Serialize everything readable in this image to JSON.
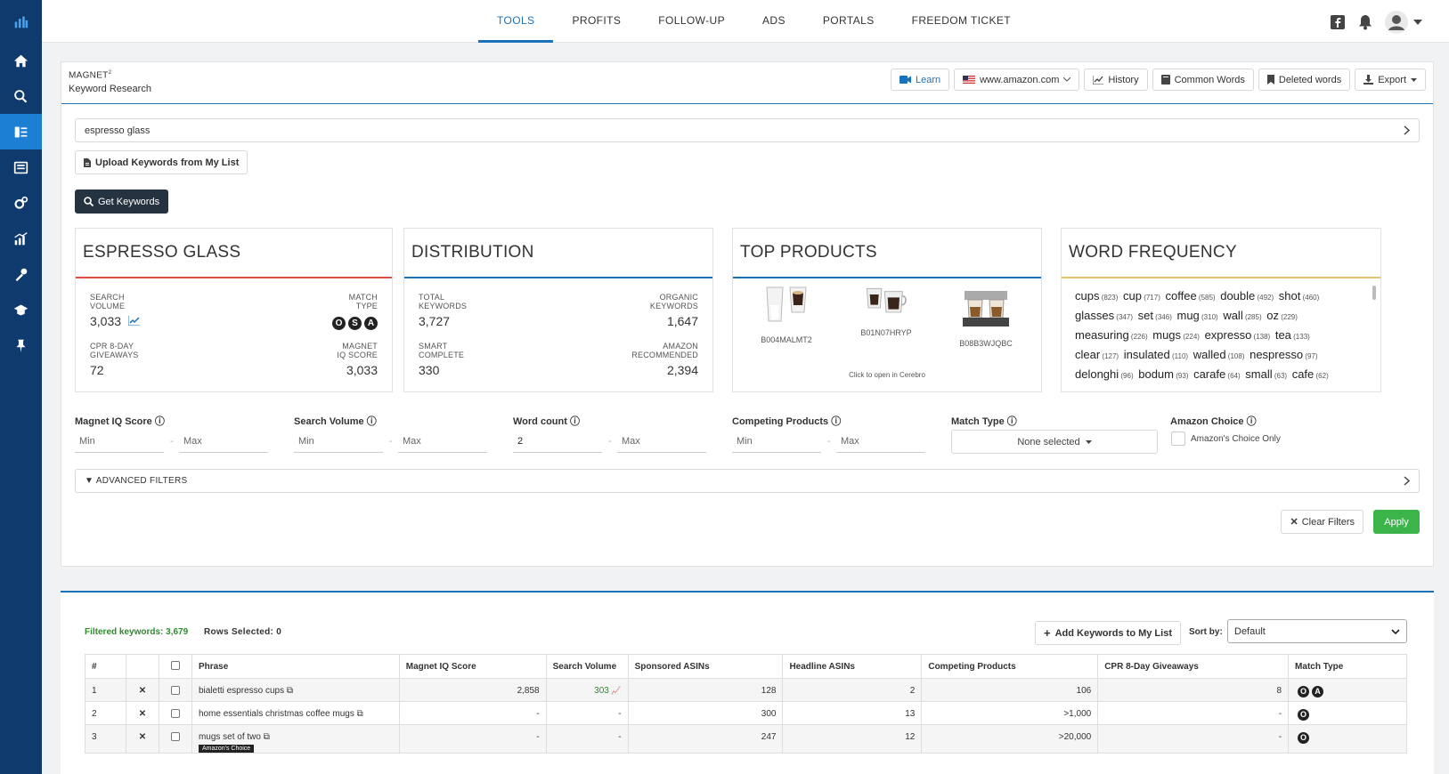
{
  "nav": {
    "tabs": [
      "TOOLS",
      "PROFITS",
      "FOLLOW-UP",
      "ADS",
      "PORTALS",
      "FREEDOM TICKET"
    ],
    "active_tab": "TOOLS"
  },
  "panel": {
    "title": "MAGNET",
    "title_sup": "2",
    "subtitle": "Keyword Research",
    "toolbar": {
      "learn": "Learn",
      "marketplace": "www.amazon.com",
      "history": "History",
      "common_words": "Common Words",
      "deleted_words": "Deleted words",
      "export": "Export"
    },
    "search_value": "espresso glass",
    "upload_label": "Upload Keywords from My List",
    "get_keywords_label": "Get Keywords"
  },
  "cards": {
    "keyword": {
      "title": "ESPRESSO GLASS",
      "search_volume_label": "SEARCH\nVOLUME",
      "search_volume": "3,033",
      "match_type_label": "MATCH\nTYPE",
      "match_badges": [
        "O",
        "S",
        "A"
      ],
      "cpr_label": "CPR 8-DAY\nGIVEAWAYS",
      "cpr": "72",
      "iq_label": "MAGNET\nIQ SCORE",
      "iq": "3,033"
    },
    "distribution": {
      "title": "DISTRIBUTION",
      "total_label": "TOTAL\nKEYWORDS",
      "total": "3,727",
      "organic_label": "ORGANIC\nKEYWORDS",
      "organic": "1,647",
      "smart_label": "SMART\nCOMPLETE",
      "smart": "330",
      "amazon_label": "AMAZON\nRECOMMENDED",
      "amazon": "2,394"
    },
    "top_products": {
      "title": "TOP PRODUCTS",
      "products": [
        "B004MALMT2",
        "B01N07HRYP",
        "B08B3WJQBC"
      ],
      "hint": "Click to open in Cerebro"
    },
    "word_frequency": {
      "title": "WORD FREQUENCY",
      "words": [
        {
          "word": "cups",
          "count": "(823)"
        },
        {
          "word": "cup",
          "count": "(717)"
        },
        {
          "word": "coffee",
          "count": "(585)"
        },
        {
          "word": "double",
          "count": "(492)"
        },
        {
          "word": "shot",
          "count": "(460)"
        },
        {
          "word": "glasses",
          "count": "(347)"
        },
        {
          "word": "set",
          "count": "(346)"
        },
        {
          "word": "mug",
          "count": "(310)"
        },
        {
          "word": "wall",
          "count": "(285)"
        },
        {
          "word": "oz",
          "count": "(229)"
        },
        {
          "word": "measuring",
          "count": "(226)"
        },
        {
          "word": "mugs",
          "count": "(224)"
        },
        {
          "word": "expresso",
          "count": "(138)"
        },
        {
          "word": "tea",
          "count": "(133)"
        },
        {
          "word": "clear",
          "count": "(127)"
        },
        {
          "word": "insulated",
          "count": "(110)"
        },
        {
          "word": "walled",
          "count": "(108)"
        },
        {
          "word": "nespresso",
          "count": "(97)"
        },
        {
          "word": "delonghi",
          "count": "(96)"
        },
        {
          "word": "bodum",
          "count": "(93)"
        },
        {
          "word": "carafe",
          "count": "(64)"
        },
        {
          "word": "small",
          "count": "(63)"
        },
        {
          "word": "cafe",
          "count": "(62)"
        }
      ]
    }
  },
  "filters": {
    "iq_label": "Magnet IQ Score",
    "sv_label": "Search Volume",
    "wc_label": "Word count",
    "cp_label": "Competing Products",
    "mt_label": "Match Type",
    "ac_label": "Amazon Choice",
    "min": "Min",
    "max": "Max",
    "word_count_min": "2",
    "match_type_value": "None selected",
    "ac_only": "Amazon's Choice Only",
    "advanced": "ADVANCED FILTERS",
    "clear": "Clear Filters",
    "apply": "Apply"
  },
  "results": {
    "filtered": "Filtered keywords: 3,679",
    "rows_selected": "Rows Selected: 0",
    "add_keywords": "Add Keywords to My List",
    "sort_label": "Sort by:",
    "sort_value": "Default",
    "columns": [
      "#",
      "",
      "",
      "Phrase",
      "Magnet IQ Score",
      "Search Volume",
      "Sponsored ASINs",
      "Headline ASINs",
      "Competing Products",
      "CPR 8-Day Giveaways",
      "Match Type"
    ],
    "rows": [
      {
        "n": "1",
        "phrase": "bialetti espresso cups",
        "iq": "2,858",
        "sv": "303",
        "sponsored": "128",
        "headline": "2",
        "competing": "106",
        "cpr": "8",
        "match": [
          "O",
          "A"
        ],
        "amazon_choice": false
      },
      {
        "n": "2",
        "phrase": "home essentials christmas coffee mugs",
        "iq": "-",
        "sv": "-",
        "sponsored": "300",
        "headline": "13",
        "competing": ">1,000",
        "cpr": "-",
        "match": [
          "O"
        ],
        "amazon_choice": false
      },
      {
        "n": "3",
        "phrase": "mugs set of two",
        "iq": "-",
        "sv": "-",
        "sponsored": "247",
        "headline": "12",
        "competing": ">20,000",
        "cpr": "-",
        "match": [
          "O"
        ],
        "amazon_choice": true,
        "amazon_choice_label": "Amazon's Choice"
      }
    ]
  }
}
